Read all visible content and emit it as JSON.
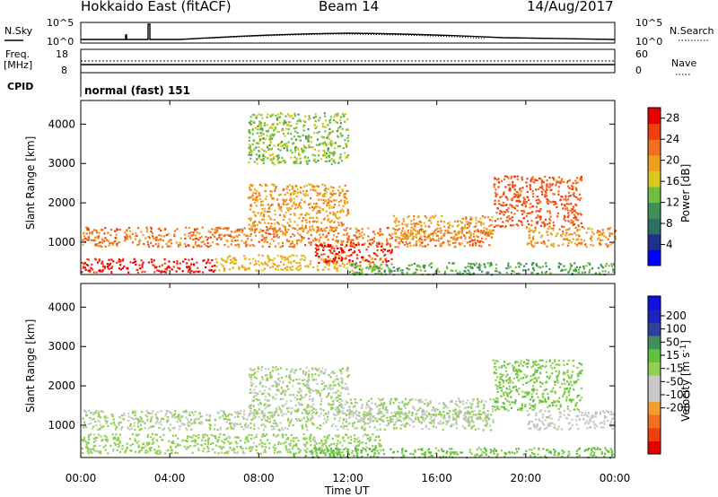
{
  "header": {
    "station": "Hokkaido East (fitACF)",
    "beam": "Beam 14",
    "date": "14/Aug/2017"
  },
  "noise_panel": {
    "left_label": "N.Sky",
    "right_label": "N.Search",
    "ticks_left": [
      "10^5",
      "10^0"
    ],
    "ticks_right": [
      "10^5",
      "10^0"
    ]
  },
  "freq_panel": {
    "left_label_line1": "Freq.",
    "left_label_line2": "[MHz]",
    "right_label": "Nave",
    "ticks_left": [
      "18",
      "8"
    ],
    "ticks_right": [
      "60",
      "0"
    ]
  },
  "cpid_panel": {
    "label": "CPID",
    "value": "normal (fast) 151"
  },
  "colors": {
    "power_scale": [
      "#0000ff",
      "#1f2f8c",
      "#2f6f62",
      "#3f8f5a",
      "#6fbf3f",
      "#d8c820",
      "#f0a020",
      "#f07020",
      "#ee4010",
      "#e80000"
    ],
    "velocity_scale": [
      "#e80000",
      "#f04010",
      "#f07020",
      "#f0a030",
      "#c8c8c8",
      "#c8c8c8",
      "#90d050",
      "#60c040",
      "#3f8f5a",
      "#3040a0",
      "#2020c0",
      "#1010e0"
    ]
  },
  "chart_data": [
    {
      "type": "heatmap",
      "title": "Power",
      "xlabel": "",
      "ylabel": "Slant Range [km]",
      "x_ticks": [
        "00:00",
        "04:00",
        "08:00",
        "12:00",
        "16:00",
        "20:00",
        "00:00"
      ],
      "y_ticks": [
        "1000",
        "2000",
        "3000",
        "4000"
      ],
      "xlim_hours": [
        0,
        24
      ],
      "ylim_km": [
        180,
        4600
      ],
      "colorbar": {
        "label": "Power [dB]",
        "ticks": [
          "4",
          "8",
          "12",
          "16",
          "20",
          "24",
          "28"
        ],
        "range": [
          0,
          30
        ]
      },
      "regions": [
        {
          "t0": 0.0,
          "t1": 18.5,
          "r0": 900,
          "r1": 1400,
          "value": 22
        },
        {
          "t0": 0.0,
          "t1": 6.0,
          "r0": 250,
          "r1": 600,
          "value": 28
        },
        {
          "t0": 6.0,
          "t1": 13.5,
          "r0": 300,
          "r1": 700,
          "value": 18
        },
        {
          "t0": 10.5,
          "t1": 14.0,
          "r0": 500,
          "r1": 1000,
          "value": 27
        },
        {
          "t0": 14.0,
          "t1": 18.5,
          "r0": 1100,
          "r1": 1700,
          "value": 20
        },
        {
          "t0": 7.5,
          "t1": 12.0,
          "r0": 1300,
          "r1": 2500,
          "value": 20
        },
        {
          "t0": 7.5,
          "t1": 12.0,
          "r0": 3000,
          "r1": 4300,
          "value": 14
        },
        {
          "t0": 18.5,
          "t1": 22.5,
          "r0": 1400,
          "r1": 2700,
          "value": 24
        },
        {
          "t0": 20.0,
          "t1": 24.0,
          "r0": 900,
          "r1": 1400,
          "value": 20
        },
        {
          "t0": 12.0,
          "t1": 24.0,
          "r0": 200,
          "r1": 500,
          "value": 12
        }
      ]
    },
    {
      "type": "heatmap",
      "title": "Velocity",
      "xlabel": "Time UT",
      "ylabel": "Slant Range [km]",
      "x_ticks": [
        "00:00",
        "04:00",
        "08:00",
        "12:00",
        "16:00",
        "20:00",
        "00:00"
      ],
      "y_ticks": [
        "1000",
        "2000",
        "3000",
        "4000"
      ],
      "xlim_hours": [
        0,
        24
      ],
      "ylim_km": [
        180,
        4600
      ],
      "colorbar": {
        "label": "Velocity [m s",
        "label_sup": "-1",
        "label_end": "]",
        "ticks": [
          "200",
          "100",
          "50",
          "15",
          "-15",
          "-50",
          "-100",
          "-200"
        ],
        "range": [
          -250,
          250
        ]
      },
      "regions": [
        {
          "t0": 0.0,
          "t1": 18.5,
          "r0": 900,
          "r1": 1400,
          "value": 0
        },
        {
          "t0": 0.0,
          "t1": 13.5,
          "r0": 300,
          "r1": 800,
          "value": 5
        },
        {
          "t0": 12.0,
          "t1": 18.5,
          "r0": 1100,
          "r1": 1700,
          "value": 0
        },
        {
          "t0": 7.5,
          "t1": 12.0,
          "r0": 1300,
          "r1": 2500,
          "value": 0
        },
        {
          "t0": 18.5,
          "t1": 22.5,
          "r0": 1400,
          "r1": 2700,
          "value": 40
        },
        {
          "t0": 9.5,
          "t1": 14.0,
          "r0": 200,
          "r1": 450,
          "value": 60
        },
        {
          "t0": 14.0,
          "t1": 24.0,
          "r0": 200,
          "r1": 450,
          "value": 45
        },
        {
          "t0": 20.0,
          "t1": 24.0,
          "r0": 900,
          "r1": 1400,
          "value": -5
        }
      ]
    }
  ]
}
